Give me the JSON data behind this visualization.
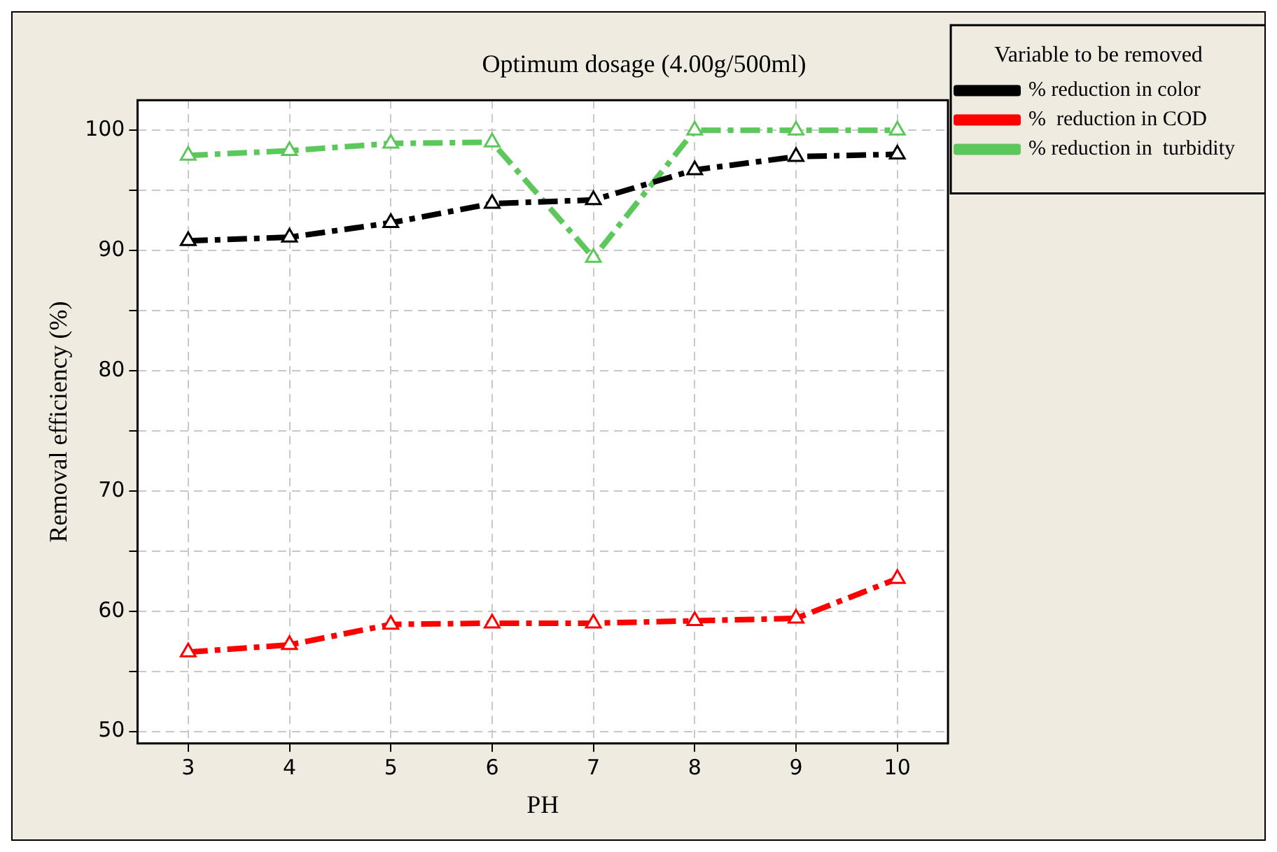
{
  "chart_data": {
    "type": "line",
    "title": "Optimum dosage (4.00g/500ml)",
    "xlabel": "PH",
    "ylabel": "Removal efficiency (%)",
    "legend_title": "Variable to be removed",
    "x": [
      3,
      4,
      5,
      6,
      7,
      8,
      9,
      10
    ],
    "series": [
      {
        "name": "% reduction in color",
        "color": "#000000",
        "values": [
          90.8,
          91.1,
          92.3,
          93.9,
          94.2,
          96.7,
          97.8,
          98.0
        ]
      },
      {
        "name": "%  reduction in COD",
        "color": "#ff0000",
        "values": [
          56.6,
          57.2,
          58.9,
          59.0,
          59.0,
          59.2,
          59.4,
          62.7
        ]
      },
      {
        "name": "% reduction in  turbidity",
        "color": "#5cc85c",
        "values": [
          97.9,
          98.3,
          98.9,
          99.0,
          89.4,
          100,
          100,
          100
        ]
      }
    ],
    "xlim": [
      2.5,
      10.5
    ],
    "xticks": [
      3,
      4,
      5,
      6,
      7,
      8,
      9,
      10
    ],
    "ylim": [
      49,
      102.5
    ],
    "yticks": [
      50,
      {
        "value": 55,
        "label": null
      },
      60,
      {
        "value": 65,
        "label": null
      },
      70,
      {
        "value": 75,
        "label": null
      },
      80,
      {
        "value": 85,
        "label": null
      },
      90,
      {
        "value": 95,
        "label": null
      },
      100
    ],
    "grid": true,
    "legend": "right",
    "marker": "triangle",
    "line_style": "dashed"
  }
}
